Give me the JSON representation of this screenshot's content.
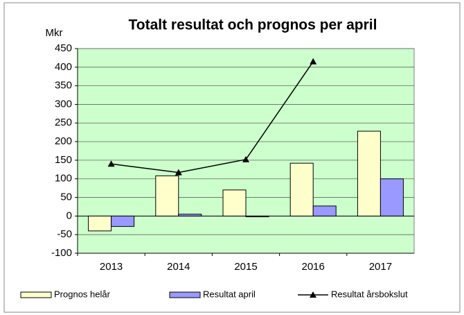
{
  "chart_data": {
    "type": "bar",
    "title": "Totalt resultat och prognos per april",
    "y_label": "Mkr",
    "categories": [
      "2013",
      "2014",
      "2015",
      "2016",
      "2017"
    ],
    "series": [
      {
        "name": "Prognos helår",
        "type": "bar",
        "color": "#ffffcc",
        "values": [
          -40,
          108,
          70,
          142,
          228
        ]
      },
      {
        "name": "Resultat april",
        "type": "bar",
        "color": "#9999ff",
        "values": [
          -28,
          5,
          -2,
          27,
          100
        ]
      },
      {
        "name": "Resultat årsbokslut",
        "type": "line",
        "color": "#000000",
        "values": [
          140,
          117,
          152,
          415,
          null
        ]
      }
    ],
    "ylim": [
      -100,
      450
    ],
    "yticks": [
      -100,
      -50,
      0,
      50,
      100,
      150,
      200,
      250,
      300,
      350,
      400,
      450
    ],
    "grid": true,
    "plot_background": "#ccffcc",
    "legend": "bottom"
  }
}
